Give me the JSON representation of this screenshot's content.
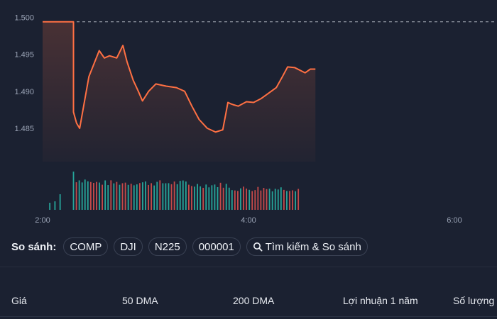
{
  "chart_data": {
    "type": "line",
    "y_ticks": [
      "1.500",
      "1.495",
      "1.490",
      "1.485"
    ],
    "x_ticks": [
      "2:00",
      "4:00",
      "6:00"
    ],
    "ylim": [
      1.4805,
      1.501
    ],
    "reference_line": 1.4994,
    "line_color": "#ff7043",
    "volume_up_color": "#26a69a",
    "volume_down_color": "#c64a4a",
    "price": {
      "x": [
        2.0,
        2.3,
        2.3,
        2.33,
        2.36,
        2.45,
        2.55,
        2.6,
        2.65,
        2.72,
        2.78,
        2.82,
        2.88,
        2.93,
        2.97,
        3.03,
        3.1,
        3.2,
        3.3,
        3.38,
        3.45,
        3.52,
        3.6,
        3.68,
        3.75,
        3.78,
        3.8,
        3.83,
        3.85,
        3.9,
        3.98,
        4.05,
        4.12,
        4.2,
        4.27,
        4.33,
        4.38,
        4.45,
        4.55,
        4.6,
        4.65
      ],
      "y": [
        1.4994,
        1.4994,
        1.4872,
        1.4857,
        1.485,
        1.492,
        1.4955,
        1.4945,
        1.4948,
        1.4945,
        1.4962,
        1.494,
        1.4915,
        1.49,
        1.4887,
        1.49,
        1.491,
        1.4907,
        1.4905,
        1.49,
        1.488,
        1.4862,
        1.485,
        1.4845,
        1.4848,
        1.487,
        1.4885,
        1.4883,
        1.4882,
        1.488,
        1.4886,
        1.4885,
        1.489,
        1.4898,
        1.4905,
        1.492,
        1.4933,
        1.4932,
        1.4925,
        1.493,
        1.493
      ]
    }
  },
  "compare": {
    "label": "So sánh:",
    "chips": [
      "COMP",
      "DJI",
      "N225",
      "000001"
    ],
    "search_label": "Tìm kiếm & So sánh"
  },
  "stats": {
    "headers": [
      "Giá",
      "50 DMA",
      "200 DMA",
      "Lợi nhuận 1 năm",
      "Số lượng"
    ]
  }
}
